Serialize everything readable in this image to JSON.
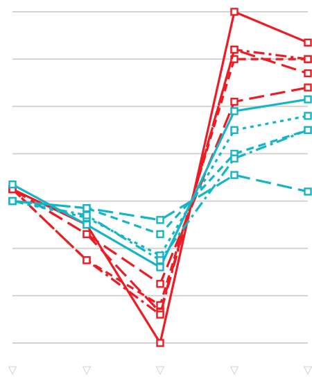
{
  "chart_data": {
    "type": "line",
    "title": "",
    "xlabel": "",
    "ylabel": "",
    "x": [
      0,
      1,
      2,
      3,
      4
    ],
    "ylim": [
      -3,
      4
    ],
    "y_gridlines": [
      -3,
      -2,
      -1,
      0,
      1,
      2,
      3,
      4
    ],
    "grid": true,
    "legend": "none",
    "x_markers": {
      "symbol": "▽",
      "color": "#c8c8c8"
    },
    "colors": {
      "red": "#ec1c24",
      "cyan": "#13b5c7",
      "grid": "#d3d3d3"
    },
    "series": [
      {
        "color": "#ec1c24",
        "dash": "solid",
        "y": [
          0.25,
          -0.5,
          -3.0,
          4.0,
          3.35
        ]
      },
      {
        "color": "#ec1c24",
        "dash": "long",
        "y": [
          0.25,
          -0.7,
          -1.75,
          2.1,
          2.4
        ]
      },
      {
        "color": "#ec1c24",
        "dash": "long",
        "y": [
          0.25,
          -0.7,
          -2.35,
          3.2,
          2.7
        ]
      },
      {
        "color": "#ec1c24",
        "dash": "short",
        "y": [
          0.25,
          -1.25,
          -2.2,
          3.0,
          3.0
        ]
      },
      {
        "color": "#ec1c24",
        "dash": "dashdot",
        "y": [
          0.25,
          -1.25,
          -2.4,
          3.2,
          3.0
        ]
      },
      {
        "color": "#13b5c7",
        "dash": "solid",
        "y": [
          0.35,
          -0.5,
          -1.4,
          1.9,
          2.15
        ]
      },
      {
        "color": "#13b5c7",
        "dash": "dotted",
        "y": [
          0.0,
          -0.35,
          -1.15,
          1.5,
          1.8
        ]
      },
      {
        "color": "#13b5c7",
        "dash": "short",
        "y": [
          0.0,
          -0.15,
          -0.7,
          1.0,
          1.5
        ]
      },
      {
        "color": "#13b5c7",
        "dash": "long",
        "y": [
          0.0,
          -0.15,
          -0.4,
          0.55,
          0.2
        ]
      },
      {
        "color": "#13b5c7",
        "dash": "dashdot",
        "y": [
          0.0,
          -0.3,
          -1.25,
          0.9,
          1.5
        ]
      }
    ]
  }
}
